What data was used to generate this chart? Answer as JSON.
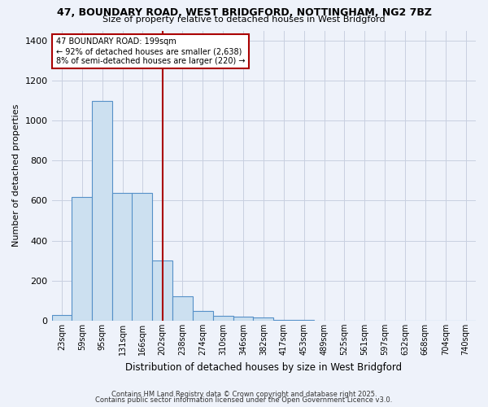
{
  "title1": "47, BOUNDARY ROAD, WEST BRIDGFORD, NOTTINGHAM, NG2 7BZ",
  "title2": "Size of property relative to detached houses in West Bridgford",
  "xlabel": "Distribution of detached houses by size in West Bridgford",
  "ylabel": "Number of detached properties",
  "bin_labels": [
    "23sqm",
    "59sqm",
    "95sqm",
    "131sqm",
    "166sqm",
    "202sqm",
    "238sqm",
    "274sqm",
    "310sqm",
    "346sqm",
    "382sqm",
    "417sqm",
    "453sqm",
    "489sqm",
    "525sqm",
    "561sqm",
    "597sqm",
    "632sqm",
    "668sqm",
    "704sqm",
    "740sqm"
  ],
  "bin_left_edges": [
    5,
    41,
    77,
    113,
    148,
    184,
    220,
    256,
    292,
    328,
    364,
    400,
    436,
    472,
    508,
    544,
    580,
    616,
    652,
    688,
    724
  ],
  "bin_width": 36,
  "bar_heights": [
    30,
    620,
    1100,
    640,
    640,
    300,
    120,
    50,
    25,
    20,
    15,
    5,
    2,
    1,
    1,
    0,
    0,
    0,
    0,
    0,
    0
  ],
  "bar_color": "#cce0f0",
  "bar_edge_color": "#5590c8",
  "vline_x": 202,
  "vline_color": "#aa0000",
  "ylim": [
    0,
    1450
  ],
  "yticks": [
    0,
    200,
    400,
    600,
    800,
    1000,
    1200,
    1400
  ],
  "annotation_line1": "47 BOUNDARY ROAD: 199sqm",
  "annotation_line2": "← 92% of detached houses are smaller (2,638)",
  "annotation_line3": "8% of semi-detached houses are larger (220) →",
  "footer1": "Contains HM Land Registry data © Crown copyright and database right 2025.",
  "footer2": "Contains public sector information licensed under the Open Government Licence v3.0.",
  "bg_color": "#eef2fa",
  "grid_color": "#c8cfe0",
  "plot_bg_color": "#eef2fa"
}
